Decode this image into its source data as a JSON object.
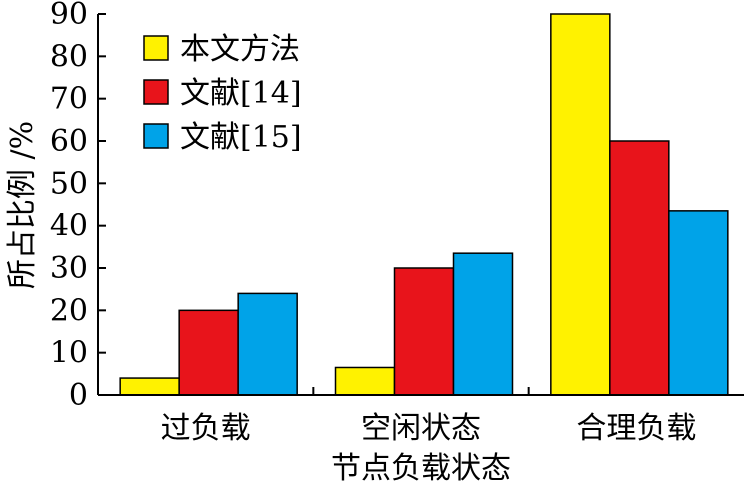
{
  "chart_data": {
    "type": "bar",
    "categories": [
      "过负载",
      "空闲状态",
      "合理负载"
    ],
    "series": [
      {
        "name": "本文方法",
        "color": "#FFF200",
        "values": [
          4,
          6.5,
          90
        ]
      },
      {
        "name": "文献[14]",
        "color": "#E8141B",
        "values": [
          20,
          30,
          60
        ]
      },
      {
        "name": "文献[15]",
        "color": "#00A3E8",
        "values": [
          24,
          33.5,
          43.5
        ]
      }
    ],
    "xlabel": "节点负载状态",
    "ylabel": "所占比例 /%",
    "ylim": [
      0,
      90
    ],
    "yticks": [
      0,
      10,
      20,
      30,
      40,
      50,
      60,
      70,
      80,
      90
    ],
    "grid": false,
    "legend_position": "top-left"
  }
}
